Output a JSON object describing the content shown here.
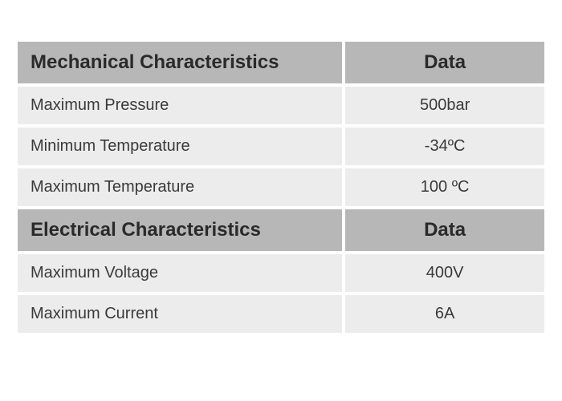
{
  "colors": {
    "header_bg": "#b7b7b7",
    "header_fg": "#2a2a2a",
    "row_bg": "#ececec",
    "row_fg": "#3a3a3a",
    "page_bg": "#ffffff"
  },
  "layout": {
    "col_left_pct": 62,
    "col_right_pct": 38,
    "cell_spacing": 4,
    "header_fontsize": 24,
    "row_fontsize": 20
  },
  "sections": [
    {
      "title_label": "Mechanical Characteristics",
      "title_data": "Data",
      "rows": [
        {
          "label": "Maximum Pressure",
          "value": "500bar"
        },
        {
          "label": "Minimum Temperature",
          "value": "-34ºC"
        },
        {
          "label": "Maximum Temperature",
          "value": "100 ºC"
        }
      ]
    },
    {
      "title_label": "Electrical Characteristics",
      "title_data": "Data",
      "rows": [
        {
          "label": "Maximum Voltage",
          "value": "400V"
        },
        {
          "label": "Maximum Current",
          "value": "6A"
        }
      ]
    }
  ]
}
